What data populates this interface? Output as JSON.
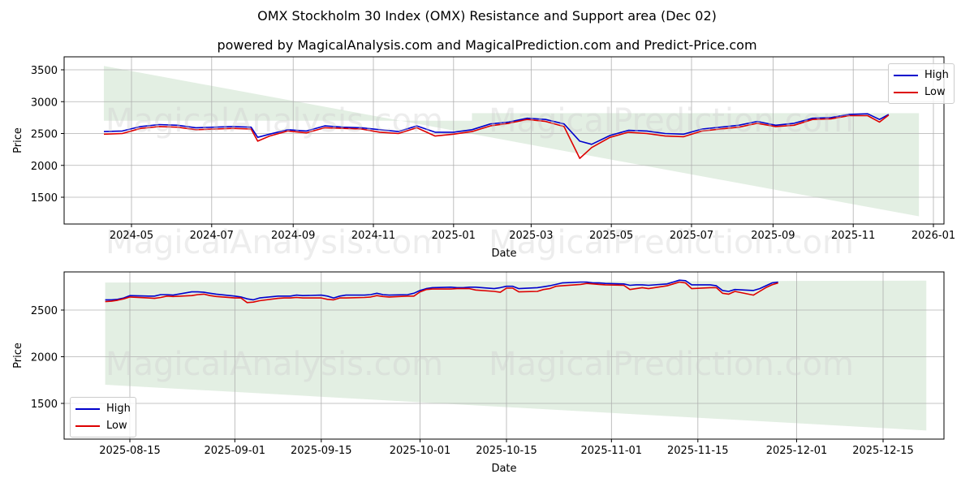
{
  "header": {
    "title": "OMX Stockholm 30 Index (OMX) Resistance and Support area (Dec 02)",
    "subtitle": "powered by MagicalAnalysis.com and MagicalPrediction.com and Predict-Price.com"
  },
  "watermarks": [
    "MagicalAnalysis.com",
    "MagicalPrediction.com"
  ],
  "colors": {
    "high": "#0000cc",
    "low": "#dd0000",
    "band": "#dcebdc",
    "grid": "#b0b0b0"
  },
  "chart_data": [
    {
      "type": "line",
      "title": "",
      "xlabel": "Date",
      "ylabel": "Price",
      "ylim": [
        1050,
        3650
      ],
      "x_ticks": [
        "2024-05",
        "2024-07",
        "2024-09",
        "2024-11",
        "2025-01",
        "2025-03",
        "2025-05",
        "2025-07",
        "2025-09",
        "2025-11",
        "2026-01"
      ],
      "y_ticks": [
        1500,
        2000,
        2500,
        3000,
        3500
      ],
      "grid": true,
      "legend": {
        "position": "upper right",
        "entries": [
          "High",
          "Low"
        ]
      },
      "band": {
        "description": "Resistance/support shaded area",
        "resistance_start": 3560,
        "support_start": 2700,
        "crossing_date": "2025-01-15",
        "resistance_end": 2820,
        "support_end": 1200,
        "start_date": "2024-04-10",
        "end_date": "2025-12-21"
      },
      "x": [
        "2024-04-10",
        "2024-04-24",
        "2024-05-08",
        "2024-05-22",
        "2024-06-05",
        "2024-06-19",
        "2024-07-03",
        "2024-07-17",
        "2024-07-31",
        "2024-08-05",
        "2024-08-14",
        "2024-08-28",
        "2024-09-11",
        "2024-09-25",
        "2024-10-09",
        "2024-10-23",
        "2024-11-06",
        "2024-11-20",
        "2024-12-04",
        "2024-12-18",
        "2025-01-01",
        "2025-01-15",
        "2025-01-29",
        "2025-02-12",
        "2025-02-26",
        "2025-03-12",
        "2025-03-26",
        "2025-04-07",
        "2025-04-16",
        "2025-04-30",
        "2025-05-14",
        "2025-05-28",
        "2025-06-11",
        "2025-06-25",
        "2025-07-09",
        "2025-07-23",
        "2025-08-06",
        "2025-08-20",
        "2025-09-03",
        "2025-09-17",
        "2025-10-01",
        "2025-10-15",
        "2025-10-29",
        "2025-11-12",
        "2025-11-21",
        "2025-11-28"
      ],
      "series": [
        {
          "name": "High",
          "values": [
            2530,
            2540,
            2610,
            2640,
            2630,
            2590,
            2600,
            2610,
            2600,
            2440,
            2490,
            2560,
            2540,
            2620,
            2600,
            2590,
            2560,
            2530,
            2620,
            2520,
            2520,
            2560,
            2650,
            2680,
            2740,
            2720,
            2650,
            2380,
            2330,
            2470,
            2550,
            2540,
            2500,
            2490,
            2570,
            2600,
            2630,
            2690,
            2630,
            2660,
            2740,
            2750,
            2800,
            2810,
            2720,
            2800
          ]
        },
        {
          "name": "Low",
          "values": [
            2490,
            2500,
            2580,
            2610,
            2600,
            2560,
            2570,
            2580,
            2570,
            2380,
            2460,
            2540,
            2510,
            2590,
            2580,
            2570,
            2520,
            2500,
            2590,
            2460,
            2490,
            2530,
            2620,
            2660,
            2720,
            2690,
            2610,
            2110,
            2280,
            2440,
            2520,
            2500,
            2460,
            2450,
            2540,
            2570,
            2600,
            2660,
            2610,
            2630,
            2720,
            2730,
            2780,
            2780,
            2680,
            2790
          ]
        }
      ]
    },
    {
      "type": "line",
      "title": "",
      "xlabel": "Date",
      "ylabel": "Price",
      "ylim": [
        1100,
        2910
      ],
      "x_ticks": [
        "2025-08-15",
        "2025-09-01",
        "2025-09-15",
        "2025-10-01",
        "2025-10-15",
        "2025-11-01",
        "2025-11-15",
        "2025-12-01",
        "2025-12-15"
      ],
      "y_ticks": [
        1500,
        2000,
        2500
      ],
      "grid": true,
      "legend": {
        "position": "lower left",
        "entries": [
          "High",
          "Low"
        ]
      },
      "band": {
        "description": "Resistance/support shaded area",
        "resistance_start": 2795,
        "support_start": 1700,
        "resistance_end": 2815,
        "support_end": 1210,
        "start_date": "2025-08-11",
        "end_date": "2025-12-22"
      },
      "x": [
        "2025-08-11",
        "2025-08-12",
        "2025-08-13",
        "2025-08-14",
        "2025-08-15",
        "2025-08-18",
        "2025-08-19",
        "2025-08-20",
        "2025-08-21",
        "2025-08-22",
        "2025-08-25",
        "2025-08-26",
        "2025-08-27",
        "2025-08-28",
        "2025-08-29",
        "2025-09-01",
        "2025-09-02",
        "2025-09-03",
        "2025-09-04",
        "2025-09-05",
        "2025-09-08",
        "2025-09-09",
        "2025-09-10",
        "2025-09-11",
        "2025-09-12",
        "2025-09-15",
        "2025-09-16",
        "2025-09-17",
        "2025-09-18",
        "2025-09-19",
        "2025-09-22",
        "2025-09-23",
        "2025-09-24",
        "2025-09-25",
        "2025-09-26",
        "2025-09-29",
        "2025-09-30",
        "2025-10-01",
        "2025-10-02",
        "2025-10-03",
        "2025-10-06",
        "2025-10-07",
        "2025-10-08",
        "2025-10-09",
        "2025-10-10",
        "2025-10-13",
        "2025-10-14",
        "2025-10-15",
        "2025-10-16",
        "2025-10-17",
        "2025-10-20",
        "2025-10-21",
        "2025-10-22",
        "2025-10-23",
        "2025-10-24",
        "2025-10-27",
        "2025-10-28",
        "2025-10-29",
        "2025-10-30",
        "2025-10-31",
        "2025-11-03",
        "2025-11-04",
        "2025-11-05",
        "2025-11-06",
        "2025-11-07",
        "2025-11-10",
        "2025-11-11",
        "2025-11-12",
        "2025-11-13",
        "2025-11-14",
        "2025-11-17",
        "2025-11-18",
        "2025-11-19",
        "2025-11-20",
        "2025-11-21",
        "2025-11-24",
        "2025-11-25",
        "2025-11-26",
        "2025-11-27",
        "2025-11-28"
      ],
      "series": [
        {
          "name": "High",
          "values": [
            2610,
            2610,
            2615,
            2630,
            2655,
            2650,
            2650,
            2665,
            2665,
            2660,
            2695,
            2695,
            2690,
            2680,
            2670,
            2650,
            2640,
            2620,
            2610,
            2630,
            2650,
            2650,
            2650,
            2660,
            2655,
            2660,
            2650,
            2630,
            2650,
            2660,
            2660,
            2665,
            2680,
            2665,
            2660,
            2665,
            2680,
            2710,
            2730,
            2740,
            2745,
            2740,
            2740,
            2745,
            2745,
            2730,
            2740,
            2755,
            2755,
            2730,
            2740,
            2750,
            2760,
            2775,
            2790,
            2800,
            2800,
            2790,
            2790,
            2785,
            2780,
            2765,
            2770,
            2770,
            2765,
            2780,
            2800,
            2820,
            2815,
            2770,
            2770,
            2760,
            2710,
            2700,
            2720,
            2710,
            2730,
            2760,
            2790,
            2800
          ]
        },
        {
          "name": "Low",
          "values": [
            2590,
            2595,
            2605,
            2620,
            2640,
            2630,
            2625,
            2635,
            2650,
            2645,
            2655,
            2665,
            2670,
            2655,
            2645,
            2630,
            2630,
            2580,
            2585,
            2600,
            2625,
            2630,
            2630,
            2635,
            2630,
            2630,
            2615,
            2610,
            2630,
            2630,
            2635,
            2640,
            2655,
            2645,
            2640,
            2650,
            2650,
            2695,
            2720,
            2725,
            2725,
            2730,
            2730,
            2730,
            2715,
            2700,
            2690,
            2735,
            2735,
            2695,
            2700,
            2720,
            2730,
            2755,
            2760,
            2775,
            2785,
            2780,
            2775,
            2770,
            2765,
            2720,
            2730,
            2740,
            2730,
            2760,
            2780,
            2800,
            2790,
            2730,
            2740,
            2740,
            2680,
            2670,
            2700,
            2660,
            2700,
            2740,
            2770,
            2790
          ]
        }
      ]
    }
  ]
}
